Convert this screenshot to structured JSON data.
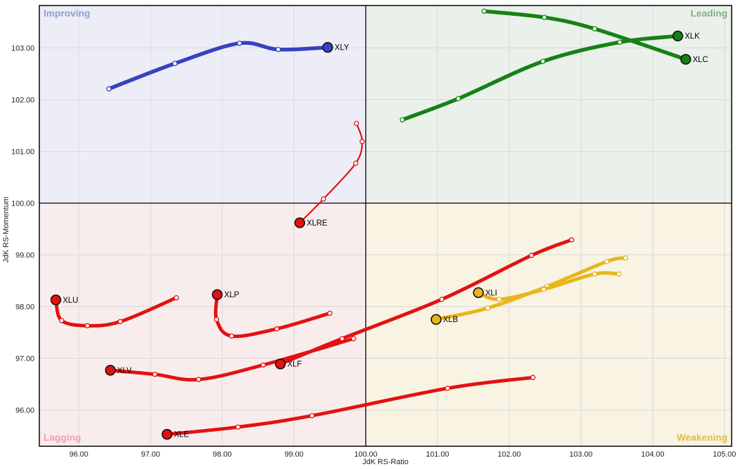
{
  "chart_data": {
    "type": "scatter",
    "subtype": "relative-rotation-graph",
    "title": "",
    "xlabel": "JdK RS-Ratio",
    "ylabel": "JdK RS-Momentum",
    "xlim": [
      95.45,
      105.1
    ],
    "ylim": [
      95.3,
      103.82
    ],
    "grid": true,
    "center": [
      100,
      100
    ],
    "x_tick_labels": [
      "96.00",
      "97.00",
      "98.00",
      "99.00",
      "100.00",
      "101.00",
      "102.00",
      "103.00",
      "104.00",
      "105.00"
    ],
    "y_tick_labels": [
      "96.00",
      "97.00",
      "98.00",
      "99.00",
      "100.00",
      "101.00",
      "102.00",
      "103.00"
    ],
    "colors": {
      "grid": "#d9d9d9",
      "axis_line": "#000000",
      "tick_text": "#222222",
      "ticker_text": "#000000",
      "marker_ring": "#111111",
      "blue": "#3742c1",
      "green": "#168116",
      "red": "#e41111",
      "yellow": "#e8b51c"
    },
    "quadrants": [
      {
        "name": "Improving",
        "position": "top-left",
        "bg": "#ededf8",
        "label_color": "#929ed1"
      },
      {
        "name": "Leading",
        "position": "top-right",
        "bg": "#eaf1ea",
        "label_color": "#84b284"
      },
      {
        "name": "Lagging",
        "position": "bottom-left",
        "bg": "#f9ecec",
        "label_color": "#eda3aa"
      },
      {
        "name": "Weakening",
        "position": "bottom-right",
        "bg": "#f8f3e2",
        "label_color": "#e2bc4e"
      }
    ],
    "series": [
      {
        "name": "XLE",
        "color_key": "red",
        "line_width": 5,
        "points": [
          [
            102.33,
            96.63
          ],
          [
            101.14,
            96.42
          ],
          [
            99.25,
            95.89
          ],
          [
            98.22,
            95.67
          ],
          [
            97.23,
            95.53
          ]
        ]
      },
      {
        "name": "XLV",
        "color_key": "red",
        "line_width": 5,
        "points": [
          [
            99.83,
            97.38
          ],
          [
            98.57,
            96.87
          ],
          [
            97.67,
            96.59
          ],
          [
            97.06,
            96.69
          ],
          [
            96.44,
            96.77
          ]
        ]
      },
      {
        "name": "XLF",
        "color_key": "red",
        "line_width": 5,
        "points": [
          [
            102.87,
            99.29
          ],
          [
            102.31,
            98.99
          ],
          [
            101.06,
            98.14
          ],
          [
            99.67,
            97.38
          ],
          [
            98.81,
            96.89
          ]
        ]
      },
      {
        "name": "XLU",
        "color_key": "red",
        "line_width": 5,
        "points": [
          [
            97.36,
            98.17
          ],
          [
            96.58,
            97.71
          ],
          [
            96.12,
            97.63
          ],
          [
            95.76,
            97.73
          ],
          [
            95.68,
            98.13
          ]
        ]
      },
      {
        "name": "XLP",
        "color_key": "red",
        "line_width": 5,
        "points": [
          [
            99.5,
            97.87
          ],
          [
            98.76,
            97.57
          ],
          [
            98.13,
            97.43
          ],
          [
            97.92,
            97.75
          ],
          [
            97.93,
            98.23
          ]
        ]
      },
      {
        "name": "XLRE",
        "color_key": "red",
        "line_width": 2.2,
        "points": [
          [
            99.87,
            101.54
          ],
          [
            99.95,
            101.19
          ],
          [
            99.86,
            100.77
          ],
          [
            99.41,
            100.08
          ],
          [
            99.08,
            99.62
          ]
        ]
      },
      {
        "name": "XLB",
        "color_key": "yellow",
        "line_width": 5,
        "points": [
          [
            103.62,
            98.94
          ],
          [
            103.36,
            98.87
          ],
          [
            102.53,
            98.39
          ],
          [
            101.7,
            97.97
          ],
          [
            100.98,
            97.75
          ]
        ]
      },
      {
        "name": "XLI",
        "color_key": "yellow",
        "line_width": 5,
        "points": [
          [
            103.53,
            98.63
          ],
          [
            103.19,
            98.63
          ],
          [
            102.48,
            98.33
          ],
          [
            101.86,
            98.14
          ],
          [
            101.57,
            98.27
          ]
        ]
      },
      {
        "name": "XLY",
        "color_key": "blue",
        "line_width": 5.5,
        "points": [
          [
            96.42,
            102.21
          ],
          [
            97.34,
            102.7
          ],
          [
            98.24,
            103.09
          ],
          [
            98.78,
            102.97
          ],
          [
            99.47,
            103.01
          ]
        ]
      },
      {
        "name": "XLK",
        "color_key": "green",
        "line_width": 5.5,
        "points": [
          [
            100.51,
            101.61
          ],
          [
            101.29,
            102.02
          ],
          [
            102.47,
            102.74
          ],
          [
            103.54,
            103.11
          ],
          [
            104.35,
            103.23
          ]
        ]
      },
      {
        "name": "XLC",
        "color_key": "green",
        "line_width": 5.5,
        "points": [
          [
            101.65,
            103.71
          ],
          [
            102.49,
            103.59
          ],
          [
            103.19,
            103.37
          ],
          [
            104.46,
            102.78
          ]
        ]
      }
    ]
  }
}
